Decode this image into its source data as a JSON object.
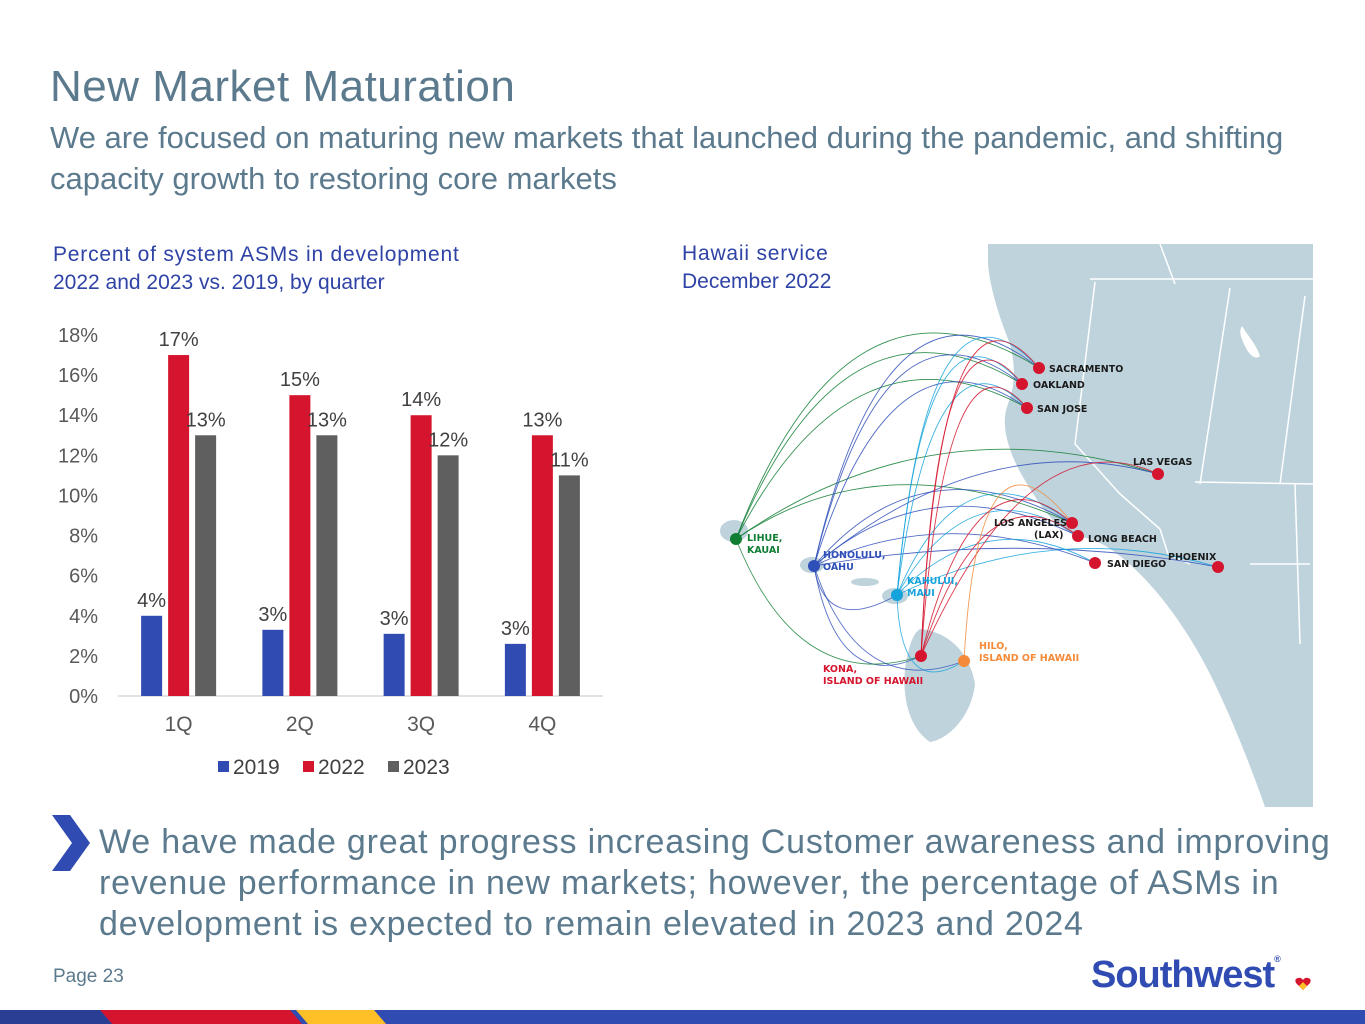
{
  "slide": {
    "title": "New Market Maturation",
    "subtitle": "We are focused on maturing new markets that launched during the pandemic, and shifting capacity growth to restoring core markets",
    "callout": "We have made great progress increasing Customer awareness and improving revenue performance in new markets; however, the percentage of ASMs in development is expected to remain elevated in 2023 and 2024",
    "page_label": "Page 23",
    "logo_text": "Southwest",
    "logo_mark": "®"
  },
  "chart_data": {
    "type": "bar",
    "title": "Percent of system ASMs in development",
    "subtitle": "2022 and 2023 vs. 2019, by quarter",
    "categories": [
      "1Q",
      "2Q",
      "3Q",
      "4Q"
    ],
    "series": [
      {
        "name": "2019",
        "color": "#304cb2",
        "values": [
          4.0,
          3.3,
          3.1,
          2.6
        ],
        "labels": [
          "4%",
          "3%",
          "3%",
          "3%"
        ]
      },
      {
        "name": "2022",
        "color": "#d5152e",
        "values": [
          17,
          15,
          14,
          13
        ],
        "labels": [
          "17%",
          "15%",
          "14%",
          "13%"
        ]
      },
      {
        "name": "2023",
        "color": "#5f5f5f",
        "values": [
          13,
          13,
          12,
          11
        ],
        "labels": [
          "13%",
          "13%",
          "12%",
          "11%"
        ]
      }
    ],
    "ylim": [
      0,
      18
    ],
    "yticks": [
      0,
      2,
      4,
      6,
      8,
      10,
      12,
      14,
      16,
      18
    ],
    "ytick_labels": [
      "0%",
      "2%",
      "4%",
      "6%",
      "8%",
      "10%",
      "12%",
      "14%",
      "16%",
      "18%"
    ],
    "grid": false,
    "legend_position": "bottom"
  },
  "map": {
    "title": "Hawaii service",
    "subtitle": "December 2022",
    "colors": {
      "land": "#bfd3dd",
      "lihue": "#0f7d32",
      "honolulu": "#2f4fb8",
      "kahului": "#16a3dc",
      "kona": "#d5152e",
      "hilo": "#f58a38"
    },
    "cities": [
      {
        "id": "sacramento",
        "label": "SACRAMENTO"
      },
      {
        "id": "oakland",
        "label": "OAKLAND"
      },
      {
        "id": "san-jose",
        "label": "SAN JOSE"
      },
      {
        "id": "las-vegas",
        "label": "LAS VEGAS"
      },
      {
        "id": "los-angeles",
        "label": "LOS ANGELES",
        "label2": "(LAX)"
      },
      {
        "id": "long-beach",
        "label": "LONG BEACH"
      },
      {
        "id": "san-diego",
        "label": "SAN DIEGO"
      },
      {
        "id": "phoenix",
        "label": "PHOENIX"
      },
      {
        "id": "lihue",
        "label": "LIHUE,",
        "label2": "KAUAI"
      },
      {
        "id": "honolulu",
        "label": "HONOLULU,",
        "label2": "OAHU"
      },
      {
        "id": "kahului",
        "label": "KAHULUI,",
        "label2": "MAUI"
      },
      {
        "id": "kona",
        "label": "KONA,",
        "label2": "ISLAND OF HAWAII"
      },
      {
        "id": "hilo",
        "label": "HILO,",
        "label2": "ISLAND OF HAWAII"
      }
    ]
  }
}
